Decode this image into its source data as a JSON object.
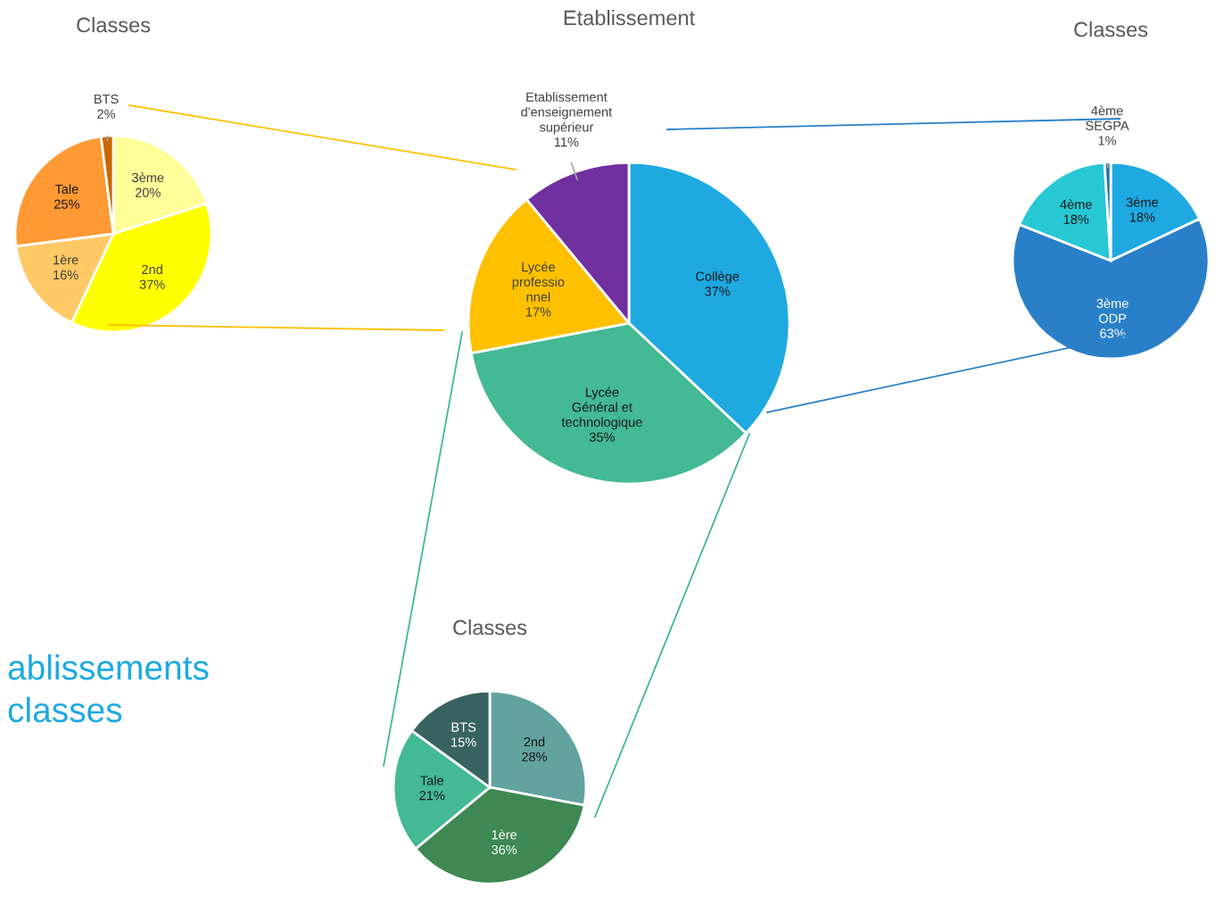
{
  "chart_data": [
    {
      "type": "pie",
      "title": "Classes",
      "categories": [
        "3ème",
        "2nd",
        "1ère",
        "Tale",
        "BTS"
      ],
      "values": [
        20,
        37,
        16,
        25,
        2
      ],
      "colors": [
        "#ffff99",
        "#ffff00",
        "#ffc966",
        "#ff9933",
        "#cc6600"
      ],
      "value_labels": [
        "20%",
        "37%",
        "16%",
        "25%",
        "2%"
      ]
    },
    {
      "type": "pie",
      "title": "Etablissement",
      "categories": [
        "Collège",
        "Lycée\nGénéral et\ntechnologique",
        "Lycée\nprofessio\nnnel",
        "Etablissement\nd'enseignement\nsupérieur"
      ],
      "values": [
        37,
        35,
        17,
        11
      ],
      "colors": [
        "#1ea9e1",
        "#43b994",
        "#ffc000",
        "#7030a0"
      ],
      "value_labels": [
        "37%",
        "35%",
        "17%",
        "11%"
      ],
      "annotations": [
        "ablissements\nclasses"
      ]
    },
    {
      "type": "pie",
      "title": "Classes",
      "categories": [
        "3ème",
        "3ème\nODP",
        "4ème",
        "4ème\nSEGPA"
      ],
      "values": [
        18,
        63,
        18,
        1
      ],
      "colors": [
        "#1ea9e1",
        "#2a80c8",
        "#27c8d4",
        "#1b6f9e"
      ],
      "value_labels": [
        "18%",
        "63%",
        "18%",
        "1%"
      ]
    },
    {
      "type": "pie",
      "title": "Classes",
      "categories": [
        "2nd",
        "1ère",
        "Tale",
        "BTS"
      ],
      "values": [
        28,
        36,
        21,
        15
      ],
      "colors": [
        "#62a39f",
        "#3e8853",
        "#43b994",
        "#386360"
      ],
      "value_labels": [
        "28%",
        "36%",
        "21%",
        "15%"
      ]
    }
  ]
}
